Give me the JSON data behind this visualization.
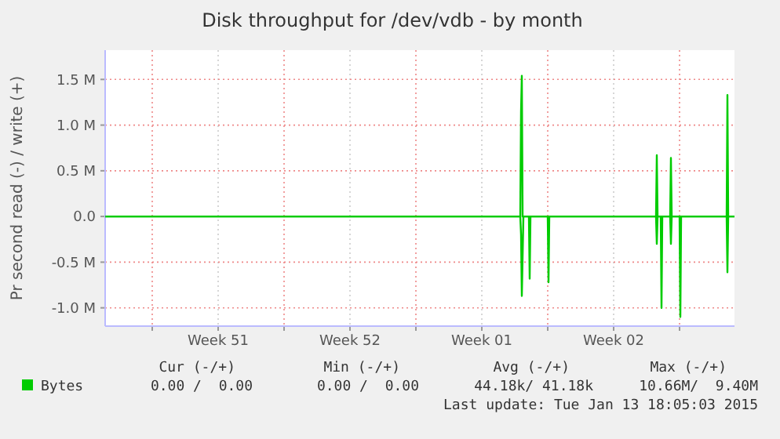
{
  "chart_data": {
    "type": "line",
    "title": "Disk throughput for /dev/vdb - by month",
    "ylabel": "Pr second read (-) / write (+)",
    "xlim": [
      "2014-12-12T12:00",
      "2015-01-14T22:00"
    ],
    "xticks": [
      {
        "value": "2014-12-15",
        "label": null
      },
      {
        "value": "2014-12-18T12:00",
        "label": "Week 51"
      },
      {
        "value": "2014-12-22",
        "label": null
      },
      {
        "value": "2014-12-25T12:00",
        "label": "Week 52"
      },
      {
        "value": "2014-12-29",
        "label": null
      },
      {
        "value": "2015-01-01T12:00",
        "label": "Week 01"
      },
      {
        "value": "2015-01-05",
        "label": null
      },
      {
        "value": "2015-01-08T12:00",
        "label": "Week 02"
      },
      {
        "value": "2015-01-12",
        "label": null
      }
    ],
    "ylim": [
      -1200000,
      1820000
    ],
    "yticks": [
      {
        "value": -1000000,
        "label": "-1.0 M"
      },
      {
        "value": -500000,
        "label": "-0.5 M"
      },
      {
        "value": 0,
        "label": "0.0"
      },
      {
        "value": 500000,
        "label": "0.5 M"
      },
      {
        "value": 1000000,
        "label": "1.0 M"
      },
      {
        "value": 1500000,
        "label": "1.5 M"
      }
    ],
    "grid": true,
    "legend": "bottom",
    "line_style": "solid",
    "series": [
      {
        "name": "Bytes",
        "color": "#00cc00",
        "x": [
          "2014-12-12T12:00",
          "2015-01-03T13:00",
          "2015-01-03T14:00",
          "2015-01-03T15:00",
          "2015-01-03T16:00",
          "2015-01-10T18:00",
          "2015-01-10T19:00",
          "2015-01-10T20:00",
          "2015-01-11T12:00",
          "2015-01-11T13:00",
          "2015-01-11T14:00",
          "2015-01-14T12:00",
          "2015-01-14T13:00",
          "2015-01-14T14:00",
          "2015-01-14T22:00"
        ],
        "values": [
          0,
          0,
          1150000,
          1540000,
          0,
          0,
          670000,
          0,
          0,
          640000,
          0,
          0,
          1330000,
          0,
          0
        ]
      },
      {
        "color": "#00cc00",
        "x": [
          "2014-12-12T12:00",
          "2015-01-03T13:00",
          "2015-01-03T14:00",
          "2015-01-03T15:00",
          "2015-01-03T17:00",
          "2015-01-04T00:00",
          "2015-01-04T01:00",
          "2015-01-04T02:00",
          "2015-01-05T00:00",
          "2015-01-05T01:00",
          "2015-01-05T02:00",
          "2015-01-10T18:00",
          "2015-01-10T19:00",
          "2015-01-10T20:00",
          "2015-01-11T00:00",
          "2015-01-11T01:00",
          "2015-01-11T02:00",
          "2015-01-11T12:00",
          "2015-01-11T13:00",
          "2015-01-11T14:00",
          "2015-01-12T00:00",
          "2015-01-12T01:00",
          "2015-01-12T02:00",
          "2015-01-14T12:00",
          "2015-01-14T13:00",
          "2015-01-14T14:00",
          "2015-01-14T22:00"
        ],
        "values": [
          0,
          0,
          -200000,
          -870000,
          0,
          0,
          -680000,
          0,
          0,
          -720000,
          0,
          0,
          -300000,
          0,
          0,
          -1000000,
          0,
          0,
          -300000,
          0,
          0,
          -1100000,
          0,
          0,
          -610000,
          0,
          0
        ]
      }
    ],
    "annotations": [
      "Cur (-/+)",
      "Min (-/+)",
      "Avg (-/+)",
      "Max (-/+)",
      "0.00 /  0.00",
      "0.00 /  0.00",
      "44.18k/ 41.18k",
      "10.66M/  9.40M",
      "Last update: Tue Jan 13 18:05:03 2015"
    ]
  }
}
